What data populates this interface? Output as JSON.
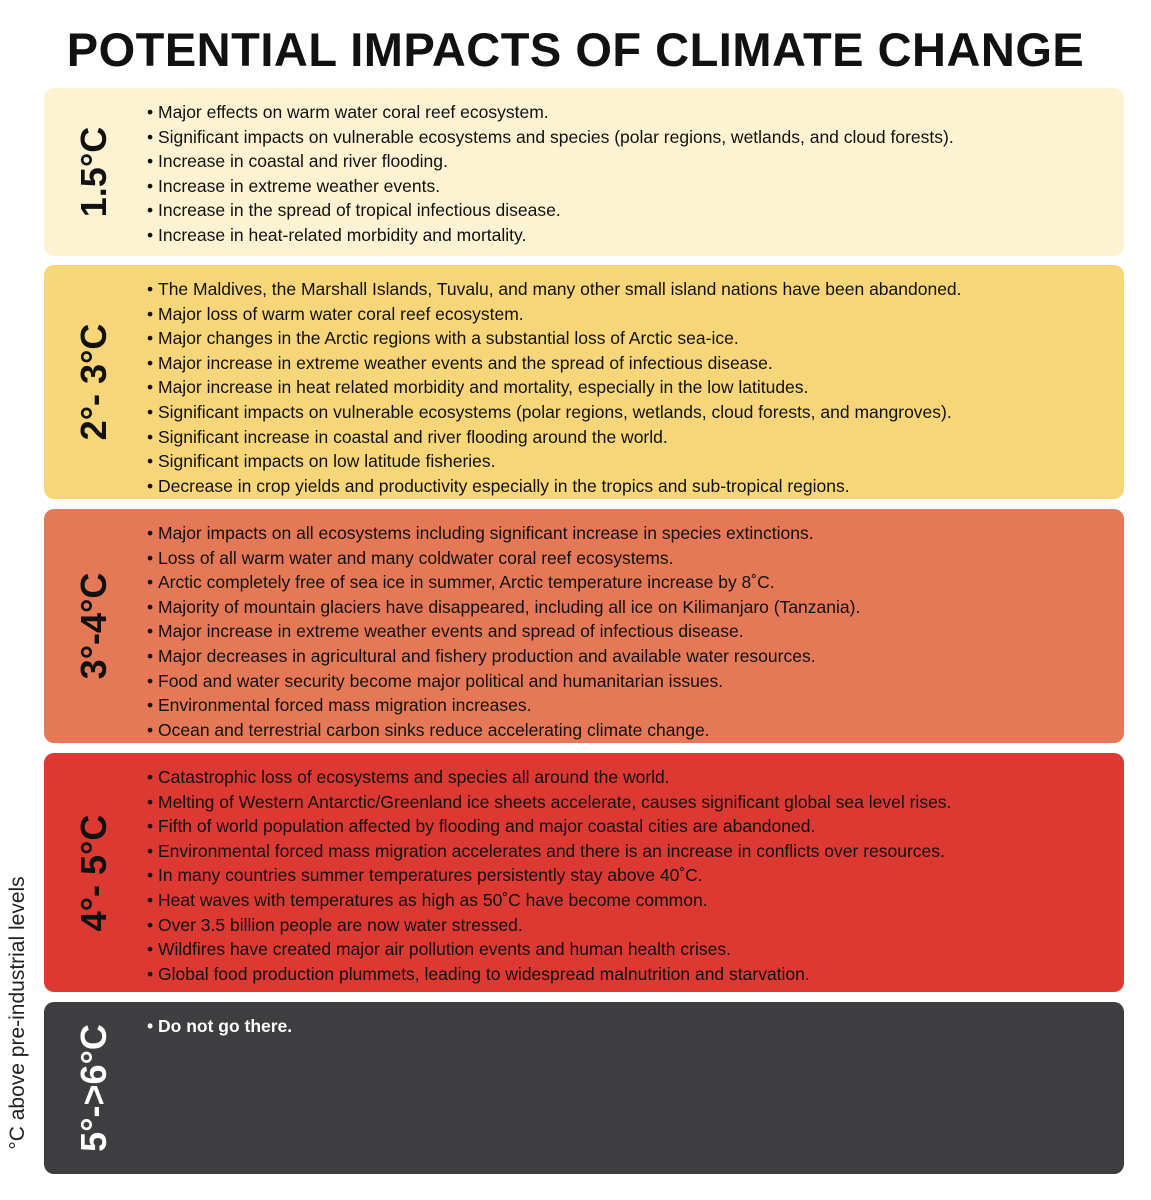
{
  "title": "POTENTIAL IMPACTS OF CLIMATE CHANGE",
  "axis_label": "°C above pre-industrial levels",
  "colors": {
    "band_1": "#fdf3d2",
    "band_2": "#f7d67a",
    "band_3": "#e57957",
    "band_4": "#db3932",
    "band_5": "#3e3e40"
  },
  "bands": [
    {
      "temperature": "1.5°C",
      "impacts": [
        "Major effects on warm water coral reef ecosystem.",
        "Significant impacts on vulnerable ecosystems and species (polar regions, wetlands, and cloud forests).",
        "Increase in coastal and river flooding.",
        "Increase in extreme weather events.",
        "Increase in the spread of tropical infectious disease.",
        "Increase in heat-related morbidity and mortality."
      ]
    },
    {
      "temperature": "2°- 3°C",
      "impacts": [
        "The Maldives, the Marshall Islands, Tuvalu, and many other small island nations have been abandoned.",
        "Major loss of warm water coral reef ecosystem.",
        "Major changes in the Arctic regions with a substantial loss of Arctic sea-ice.",
        "Major increase in extreme weather events and the spread of infectious disease.",
        "Major increase in heat related morbidity and mortality, especially in the low latitudes.",
        "Significant impacts on vulnerable ecosystems (polar regions, wetlands, cloud forests, and mangroves).",
        "Significant increase in coastal and river flooding around the world.",
        "Significant impacts on low latitude fisheries.",
        "Decrease in crop yields and productivity especially in the tropics and sub-tropical regions."
      ]
    },
    {
      "temperature": "3°-4°C",
      "impacts": [
        "Major impacts on all ecosystems including significant increase in species extinctions.",
        "Loss of all warm water and many coldwater coral reef ecosystems.",
        "Arctic completely free of sea ice in summer, Arctic temperature increase by 8˚C.",
        "Majority of mountain glaciers have disappeared, including all ice on Kilimanjaro (Tanzania).",
        "Major increase in extreme weather events and spread of infectious disease.",
        "Major decreases in agricultural and fishery production and available water resources.",
        "Food and water security become major political and humanitarian issues.",
        "Environmental forced mass migration increases.",
        "Ocean and terrestrial carbon sinks reduce accelerating climate change."
      ]
    },
    {
      "temperature": "4°- 5°C",
      "impacts": [
        "Catastrophic loss of ecosystems and species all around the world.",
        "Melting of Western Antarctic/Greenland ice sheets accelerate, causes significant global sea level rises.",
        "Fifth of world population affected by flooding and major coastal cities are abandoned.",
        "Environmental forced mass migration accelerates and there is an increase in conflicts over resources.",
        "In many countries summer temperatures persistently stay above 40˚C.",
        "Heat waves with temperatures as high as 50˚C have become common.",
        "Over 3.5 billion people are now water stressed.",
        "Wildfires have created major air pollution events and human health crises.",
        "Global food production plummets, leading to widespread malnutrition and starvation."
      ]
    },
    {
      "temperature": "5°->6°C",
      "impacts": [
        "Do not go there."
      ]
    }
  ]
}
